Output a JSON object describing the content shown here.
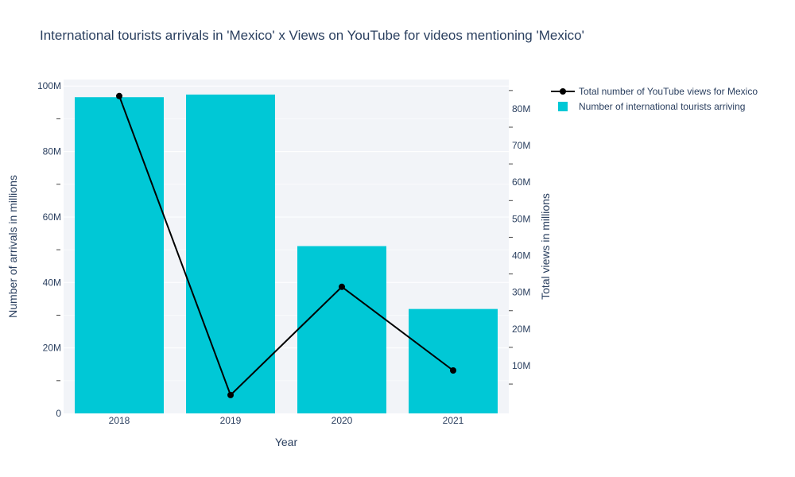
{
  "chart_data": {
    "type": "bar",
    "title": "International tourists arrivals in 'Mexico' x Views on YouTube for videos mentioning 'Mexico'",
    "xlabel": "Year",
    "ylabel": "Number of arrivals in millions",
    "y2label": "Total views in millions",
    "categories": [
      "2018",
      "2019",
      "2020",
      "2021"
    ],
    "ylim": [
      0,
      102000000
    ],
    "y2lim": [
      -3000000,
      88000000
    ],
    "y_ticks": [
      0,
      20000000,
      40000000,
      60000000,
      80000000,
      100000000
    ],
    "y_tick_labels": [
      "0",
      "20M",
      "40M",
      "60M",
      "80M",
      "100M"
    ],
    "y2_ticks": [
      10000000,
      20000000,
      30000000,
      40000000,
      50000000,
      60000000,
      70000000,
      80000000
    ],
    "y2_tick_labels": [
      "10M",
      "20M",
      "30M",
      "40M",
      "50M",
      "60M",
      "70M",
      "80M"
    ],
    "series": [
      {
        "name": "Number of international tourists arriving",
        "kind": "bar",
        "axis": "y",
        "color": "#00c8d6",
        "values": [
          96600000,
          97400000,
          51100000,
          31900000
        ]
      },
      {
        "name": "Total number of YouTube views for Mexico",
        "kind": "line",
        "axis": "y2",
        "color": "#000000",
        "values": [
          83500000,
          2000000,
          31500000,
          8700000
        ]
      }
    ],
    "legend_position": "top-right",
    "plot_background": "#f2f4f8",
    "grid": true
  }
}
